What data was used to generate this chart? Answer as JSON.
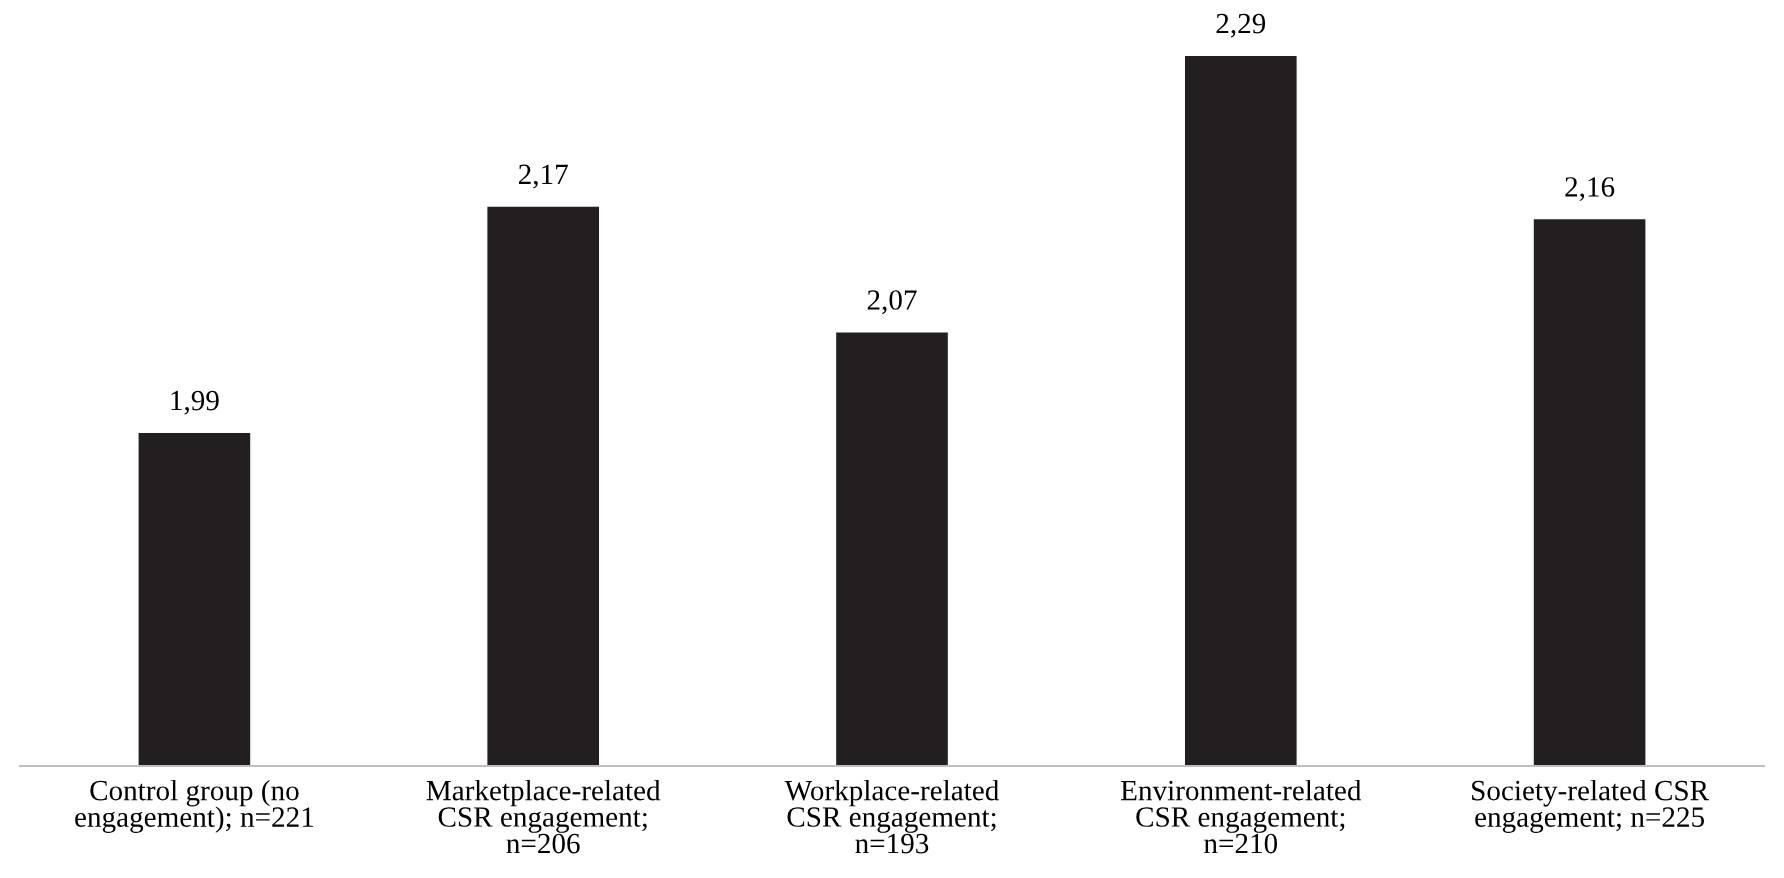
{
  "chart_data": {
    "type": "bar",
    "categories": [
      "Control group (no\nengagement); n=221",
      "Marketplace-related\nCSR engagement;\nn=206",
      "Workplace-related\nCSR engagement;\nn=193",
      "Environment-related\nCSR engagement;\nn=210",
      "Society-related CSR\nengagement; n=225"
    ],
    "values": [
      1.99,
      2.17,
      2.07,
      2.29,
      2.16
    ],
    "value_labels": [
      "1,99",
      "2,17",
      "2,07",
      "2,29",
      "2,16"
    ],
    "color": "#231f20",
    "ylim": [
      1.725,
      2.29
    ],
    "tick_labels": "x",
    "grid": false,
    "legend": false
  }
}
